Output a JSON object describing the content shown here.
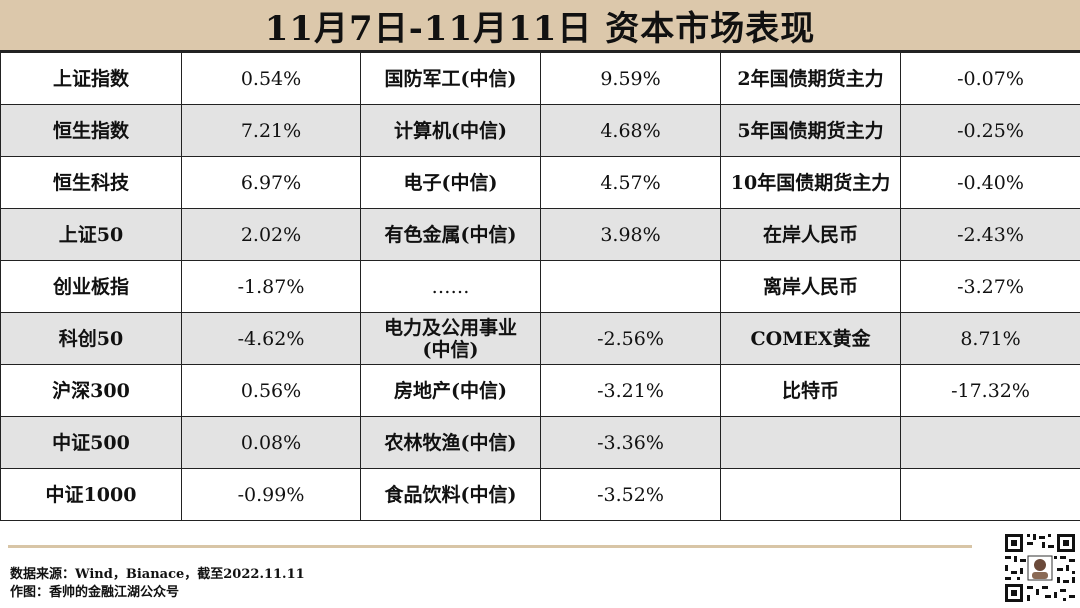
{
  "title": "11月7日-11月11日 资本市场表现",
  "rows": [
    {
      "c1": "上证指数",
      "v1": "0.54%",
      "c2": "国防军工(中信)",
      "v2": "9.59%",
      "c3": "2年国债期货主力",
      "v3": "-0.07%"
    },
    {
      "c1": "恒生指数",
      "v1": "7.21%",
      "c2": "计算机(中信)",
      "v2": "4.68%",
      "c3": "5年国债期货主力",
      "v3": "-0.25%"
    },
    {
      "c1": "恒生科技",
      "v1": "6.97%",
      "c2": "电子(中信)",
      "v2": "4.57%",
      "c3": "10年国债期货主力",
      "v3": "-0.40%"
    },
    {
      "c1": "上证50",
      "v1": "2.02%",
      "c2": "有色金属(中信)",
      "v2": "3.98%",
      "c3": "在岸人民币",
      "v3": "-2.43%"
    },
    {
      "c1": "创业板指",
      "v1": "-1.87%",
      "c2": "……",
      "v2": "",
      "c3": "离岸人民币",
      "v3": "-3.27%"
    },
    {
      "c1": "科创50",
      "v1": "-4.62%",
      "c2a": "电力及公用事业",
      "c2b": "(中信)",
      "v2": "-2.56%",
      "c3": "COMEX黄金",
      "v3": "8.71%"
    },
    {
      "c1": "沪深300",
      "v1": "0.56%",
      "c2": "房地产(中信)",
      "v2": "-3.21%",
      "c3": "比特币",
      "v3": "-17.32%"
    },
    {
      "c1": "中证500",
      "v1": "0.08%",
      "c2": "农林牧渔(中信)",
      "v2": "-3.36%",
      "c3": "",
      "v3": ""
    },
    {
      "c1": "中证1000",
      "v1": "-0.99%",
      "c2": "食品饮料(中信)",
      "v2": "-3.52%",
      "c3": "",
      "v3": ""
    }
  ],
  "footer": {
    "source": "数据来源：Wind，Bianace，截至2022.11.11",
    "author": "作图：香帅的金融江湖公众号"
  }
}
